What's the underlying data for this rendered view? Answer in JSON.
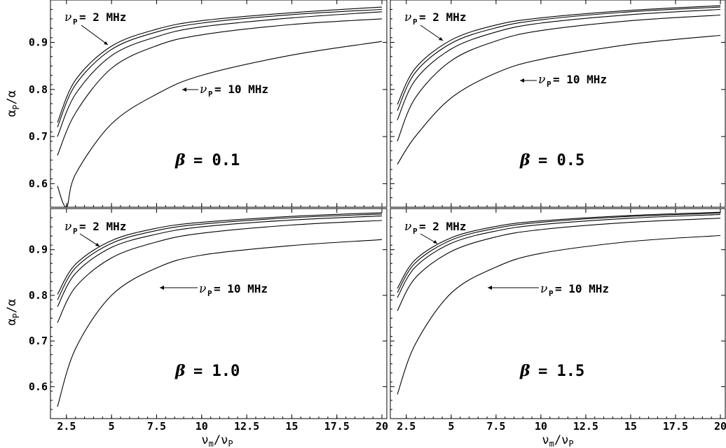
{
  "figure": {
    "y_axis_label": {
      "main": "α",
      "sub": "P",
      "tail": "/α"
    },
    "x_axis_label": {
      "main": "ν",
      "sub1": "m",
      "mid": "/ν",
      "sub2": "P"
    },
    "annotation_low": {
      "nu": "ν",
      "sub": "P",
      "text": "= 2 MHz"
    },
    "annotation_high": {
      "nu": "ν",
      "sub": "P",
      "text": "= 10 MHz"
    }
  },
  "chart_data": [
    {
      "type": "line",
      "panel": "top-left",
      "beta_symbol": "β",
      "beta_text": "= 0.1",
      "x_ticks": [
        "2.5",
        "5",
        "7.5",
        "10",
        "12.5",
        "15",
        "17.5",
        "20"
      ],
      "y_ticks": [
        "0.6",
        "0.7",
        "0.8",
        "0.9"
      ],
      "xlim": [
        2,
        20
      ],
      "ylim": [
        0.55,
        0.99
      ],
      "series": [
        {
          "x": [
            2,
            3,
            5,
            7.5,
            10,
            15,
            20
          ],
          "y": [
            0.73,
            0.82,
            0.892,
            0.928,
            0.946,
            0.963,
            0.975
          ]
        },
        {
          "x": [
            2,
            3,
            5,
            7.5,
            10,
            15,
            20
          ],
          "y": [
            0.72,
            0.81,
            0.885,
            0.922,
            0.941,
            0.959,
            0.97
          ]
        },
        {
          "x": [
            2,
            3,
            5,
            7.5,
            10,
            15,
            20
          ],
          "y": [
            0.7,
            0.79,
            0.872,
            0.912,
            0.933,
            0.952,
            0.965
          ]
        },
        {
          "x": [
            2,
            3,
            5,
            7.5,
            10,
            15,
            20
          ],
          "y": [
            0.66,
            0.75,
            0.845,
            0.893,
            0.916,
            0.938,
            0.95
          ]
        },
        {
          "x": [
            2,
            2.5,
            3,
            5,
            7.5,
            10,
            15,
            20
          ],
          "y": [
            0.595,
            0.55,
            0.62,
            0.727,
            0.79,
            0.83,
            0.873,
            0.902
          ]
        }
      ]
    },
    {
      "type": "line",
      "panel": "top-right",
      "beta_symbol": "β",
      "beta_text": "= 0.5",
      "x_ticks": [
        "2.5",
        "5",
        "7.5",
        "10",
        "12.5",
        "15",
        "17.5",
        "20"
      ],
      "y_ticks": [],
      "xlim": [
        2,
        20
      ],
      "ylim": [
        0.55,
        0.99
      ],
      "series": [
        {
          "x": [
            2,
            3,
            5,
            7.5,
            10,
            15,
            20
          ],
          "y": [
            0.768,
            0.845,
            0.905,
            0.937,
            0.952,
            0.968,
            0.978
          ]
        },
        {
          "x": [
            2,
            3,
            5,
            7.5,
            10,
            15,
            20
          ],
          "y": [
            0.755,
            0.836,
            0.898,
            0.931,
            0.948,
            0.965,
            0.975
          ]
        },
        {
          "x": [
            2,
            3,
            5,
            7.5,
            10,
            15,
            20
          ],
          "y": [
            0.735,
            0.82,
            0.886,
            0.922,
            0.941,
            0.959,
            0.97
          ]
        },
        {
          "x": [
            2,
            3,
            5,
            7.5,
            10,
            15,
            20
          ],
          "y": [
            0.69,
            0.782,
            0.861,
            0.903,
            0.925,
            0.946,
            0.958
          ]
        },
        {
          "x": [
            2,
            3,
            5,
            7.5,
            10,
            15,
            20
          ],
          "y": [
            0.641,
            0.7,
            0.782,
            0.835,
            0.864,
            0.896,
            0.915
          ]
        }
      ]
    },
    {
      "type": "line",
      "panel": "bottom-left",
      "beta_symbol": "β",
      "beta_text": "= 1.0",
      "x_ticks": [
        "2.5",
        "5",
        "7.5",
        "10",
        "12.5",
        "15",
        "17.5",
        "20"
      ],
      "y_ticks": [
        "0.6",
        "0.7",
        "0.8",
        "0.9"
      ],
      "xlim": [
        2,
        20
      ],
      "ylim": [
        0.53,
        0.99
      ],
      "series": [
        {
          "x": [
            2,
            3,
            5,
            7.5,
            10,
            15,
            20
          ],
          "y": [
            0.802,
            0.868,
            0.92,
            0.947,
            0.96,
            0.973,
            0.981
          ]
        },
        {
          "x": [
            2,
            3,
            5,
            7.5,
            10,
            15,
            20
          ],
          "y": [
            0.79,
            0.86,
            0.914,
            0.942,
            0.956,
            0.97,
            0.978
          ]
        },
        {
          "x": [
            2,
            3,
            5,
            7.5,
            10,
            15,
            20
          ],
          "y": [
            0.775,
            0.848,
            0.905,
            0.934,
            0.95,
            0.965,
            0.974
          ]
        },
        {
          "x": [
            2,
            3,
            5,
            7.5,
            10,
            15,
            20
          ],
          "y": [
            0.74,
            0.818,
            0.882,
            0.917,
            0.936,
            0.954,
            0.964
          ]
        },
        {
          "x": [
            2,
            3,
            5,
            7.5,
            10,
            15,
            20
          ],
          "y": [
            0.556,
            0.683,
            0.8,
            0.86,
            0.888,
            0.909,
            0.922
          ]
        }
      ]
    },
    {
      "type": "line",
      "panel": "bottom-right",
      "beta_symbol": "β",
      "beta_text": "= 1.5",
      "x_ticks": [
        "2.5",
        "5",
        "7.5",
        "10",
        "12.5",
        "15",
        "17.5",
        "20"
      ],
      "y_ticks": [],
      "xlim": [
        2,
        20
      ],
      "ylim": [
        0.53,
        0.99
      ],
      "series": [
        {
          "x": [
            2,
            3,
            5,
            7.5,
            10,
            15,
            20
          ],
          "y": [
            0.815,
            0.878,
            0.926,
            0.951,
            0.963,
            0.975,
            0.982
          ]
        },
        {
          "x": [
            2,
            3,
            5,
            7.5,
            10,
            15,
            20
          ],
          "y": [
            0.806,
            0.871,
            0.921,
            0.947,
            0.96,
            0.973,
            0.98
          ]
        },
        {
          "x": [
            2,
            3,
            5,
            7.5,
            10,
            15,
            20
          ],
          "y": [
            0.795,
            0.862,
            0.914,
            0.941,
            0.955,
            0.969,
            0.977
          ]
        },
        {
          "x": [
            2,
            3,
            5,
            7.5,
            10,
            15,
            20
          ],
          "y": [
            0.766,
            0.838,
            0.896,
            0.928,
            0.944,
            0.96,
            0.969
          ]
        },
        {
          "x": [
            2,
            3,
            5,
            7.5,
            10,
            15,
            20
          ],
          "y": [
            0.583,
            0.693,
            0.805,
            0.862,
            0.892,
            0.918,
            0.931
          ]
        }
      ]
    }
  ]
}
